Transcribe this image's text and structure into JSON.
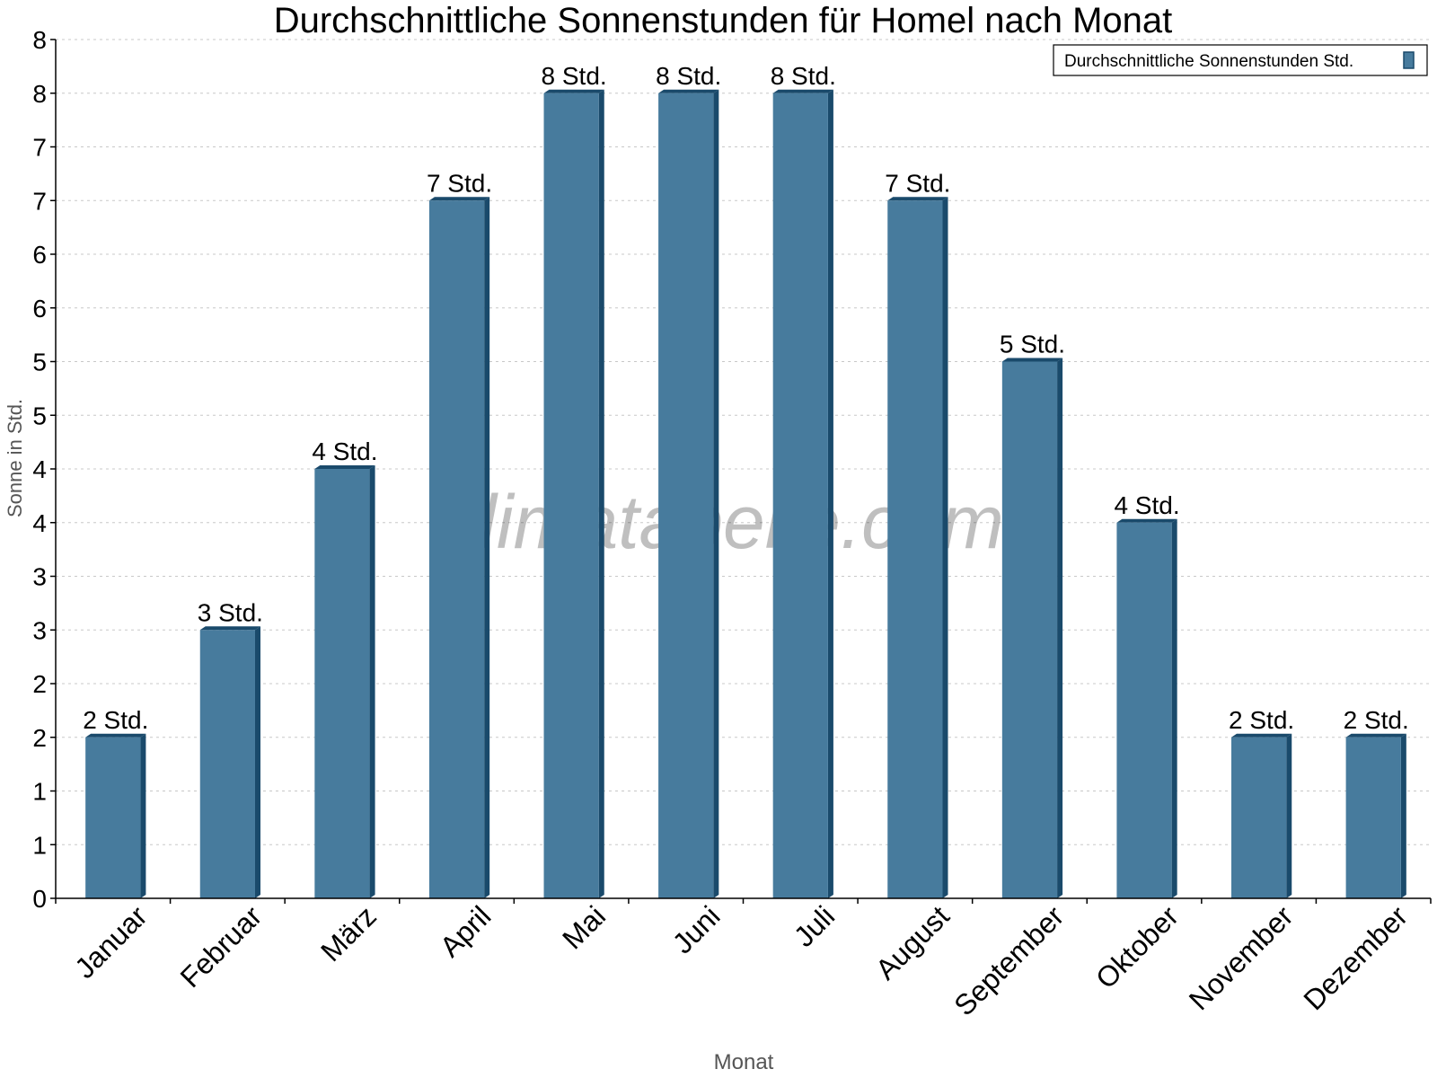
{
  "chart_data": {
    "type": "bar",
    "title": "Durchschnittliche Sonnenstunden für Homel nach Monat",
    "xlabel": "Monat",
    "ylabel": "Sonne in Std.",
    "categories": [
      "Januar",
      "Februar",
      "März",
      "April",
      "Mai",
      "Juni",
      "Juli",
      "August",
      "September",
      "Oktober",
      "November",
      "Dezember"
    ],
    "series": [
      {
        "name": "Durchschnittliche Sonnenstunden Std.",
        "values": [
          1.5,
          2.5,
          4.0,
          6.5,
          7.5,
          7.5,
          7.5,
          6.5,
          5.0,
          3.5,
          1.5,
          1.5
        ],
        "data_labels": [
          "2 Std.",
          "3 Std.",
          "4 Std.",
          "7 Std.",
          "8 Std.",
          "8 Std.",
          "8 Std.",
          "7 Std.",
          "5 Std.",
          "4 Std.",
          "2 Std.",
          "2 Std."
        ]
      }
    ],
    "ylim": [
      0,
      8
    ],
    "ytick_values": [
      0,
      0.5,
      1,
      1.5,
      2,
      2.5,
      3,
      3.5,
      4,
      4.5,
      5,
      5.5,
      6,
      6.5,
      7,
      7.5,
      8
    ],
    "ytick_labels": [
      "0",
      "1",
      "1",
      "2",
      "2",
      "3",
      "3",
      "4",
      "4",
      "5",
      "5",
      "6",
      "6",
      "7",
      "7",
      "8",
      "8"
    ],
    "grid": true,
    "legend_position": "top-right",
    "watermark": "klimatabelle.com",
    "colors": {
      "bar": "#477b9d",
      "bar_side": "#1a4a6b",
      "grid": "#c8c8c8"
    }
  }
}
